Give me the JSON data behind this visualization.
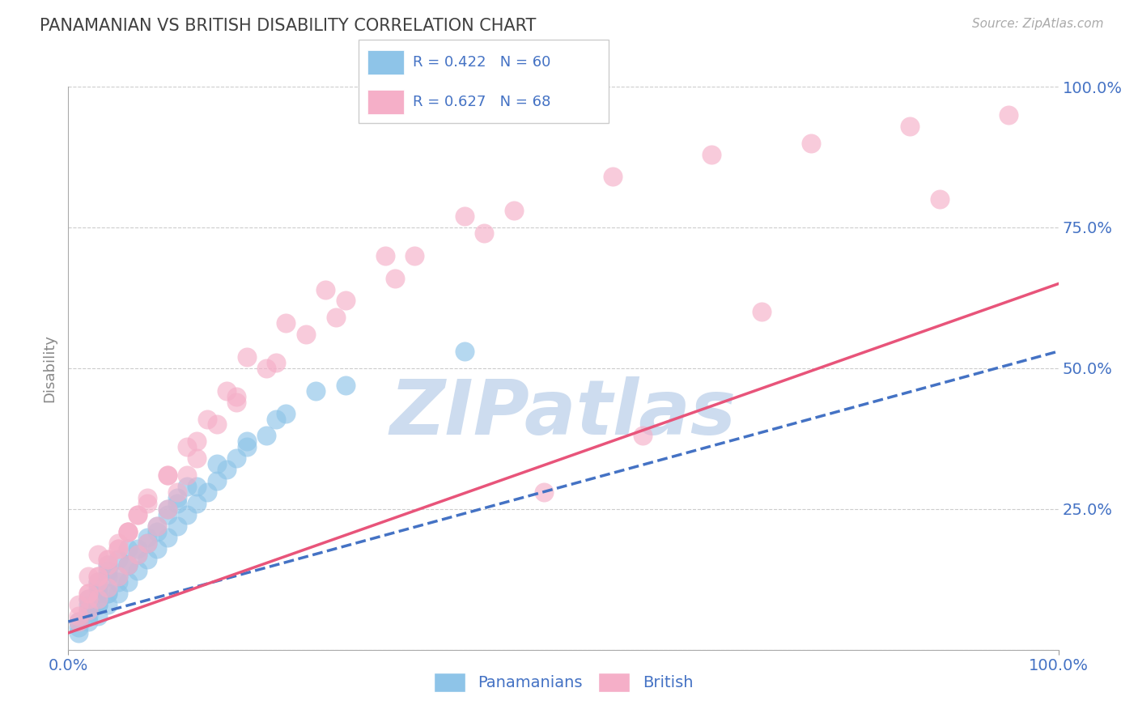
{
  "title": "PANAMANIAN VS BRITISH DISABILITY CORRELATION CHART",
  "source_text": "Source: ZipAtlas.com",
  "ylabel": "Disability",
  "R_blue": 0.422,
  "N_blue": 60,
  "R_pink": 0.627,
  "N_pink": 68,
  "blue_color": "#8ec4e8",
  "pink_color": "#f5afc8",
  "trend_blue_color": "#4472c4",
  "trend_pink_color": "#e8547a",
  "title_color": "#404040",
  "axis_label_color": "#4472c4",
  "watermark_color": "#cddcef",
  "background_color": "#ffffff",
  "grid_color": "#cccccc",
  "watermark_text": "ZIPatlas",
  "blue_scatter_x": [
    1,
    1,
    2,
    2,
    2,
    3,
    3,
    3,
    3,
    4,
    4,
    4,
    4,
    5,
    5,
    5,
    6,
    6,
    6,
    7,
    7,
    8,
    8,
    9,
    9,
    10,
    10,
    11,
    11,
    12,
    12,
    13,
    14,
    15,
    16,
    17,
    18,
    20,
    22,
    25,
    1,
    2,
    2,
    3,
    3,
    4,
    4,
    5,
    6,
    7,
    8,
    9,
    10,
    11,
    13,
    15,
    18,
    21,
    28,
    40
  ],
  "blue_scatter_y": [
    3,
    5,
    5,
    7,
    8,
    6,
    8,
    10,
    12,
    8,
    10,
    13,
    15,
    10,
    13,
    16,
    12,
    15,
    18,
    14,
    18,
    16,
    20,
    18,
    22,
    20,
    25,
    22,
    27,
    24,
    29,
    26,
    28,
    30,
    32,
    34,
    36,
    38,
    42,
    46,
    4,
    6,
    9,
    8,
    11,
    10,
    14,
    12,
    15,
    17,
    19,
    21,
    24,
    26,
    29,
    33,
    37,
    41,
    47,
    53
  ],
  "pink_scatter_x": [
    1,
    1,
    2,
    2,
    2,
    3,
    3,
    3,
    4,
    4,
    5,
    5,
    6,
    6,
    7,
    7,
    8,
    9,
    10,
    11,
    12,
    13,
    15,
    17,
    20,
    24,
    28,
    35,
    45,
    55,
    65,
    75,
    85,
    95,
    2,
    3,
    4,
    5,
    6,
    7,
    8,
    10,
    12,
    14,
    16,
    18,
    22,
    26,
    32,
    40,
    1,
    2,
    3,
    4,
    5,
    6,
    8,
    10,
    13,
    17,
    21,
    27,
    33,
    42,
    48,
    58,
    70,
    88
  ],
  "pink_scatter_y": [
    5,
    8,
    7,
    10,
    13,
    9,
    13,
    17,
    11,
    16,
    13,
    19,
    15,
    21,
    17,
    24,
    19,
    22,
    25,
    28,
    31,
    34,
    40,
    45,
    50,
    56,
    62,
    70,
    78,
    84,
    88,
    90,
    93,
    95,
    10,
    13,
    16,
    18,
    21,
    24,
    27,
    31,
    36,
    41,
    46,
    52,
    58,
    64,
    70,
    77,
    6,
    9,
    12,
    15,
    18,
    21,
    26,
    31,
    37,
    44,
    51,
    59,
    66,
    74,
    28,
    38,
    60,
    80
  ],
  "xlim": [
    0,
    100
  ],
  "ylim": [
    0,
    100
  ],
  "yticks_right": [
    0,
    25,
    50,
    75,
    100
  ],
  "yticklabels_right": [
    "",
    "25.0%",
    "50.0%",
    "75.0%",
    "100.0%"
  ]
}
